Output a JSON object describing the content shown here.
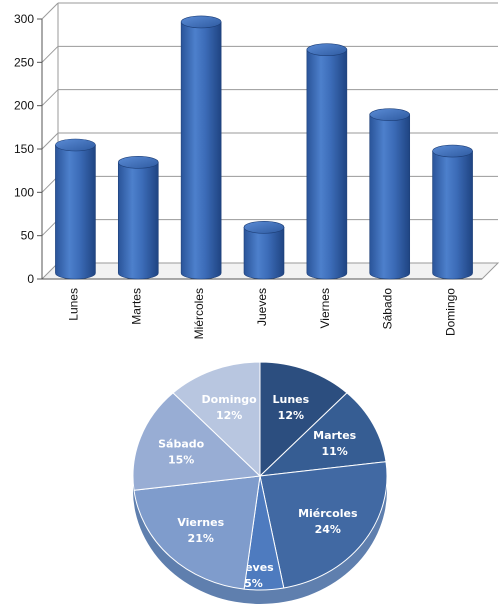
{
  "chart_data": [
    {
      "type": "bar",
      "style": "3d-cylinder",
      "categories": [
        "Lunes",
        "Martes",
        "Miércoles",
        "Jueves",
        "Viernes",
        "Sábado",
        "Domingo"
      ],
      "values": [
        150,
        130,
        292,
        55,
        260,
        185,
        143
      ],
      "ylim": [
        0,
        300
      ],
      "yticks": [
        "0",
        "50",
        "100",
        "150",
        "200",
        "250",
        "300"
      ],
      "grid": true,
      "color": "#3f6fba"
    },
    {
      "type": "pie",
      "style": "3d",
      "slices": [
        {
          "label": "Lunes",
          "percent": "12%",
          "value": 12,
          "color": "#2c4e7f"
        },
        {
          "label": "Martes",
          "percent": "11%",
          "value": 11,
          "color": "#365d93"
        },
        {
          "label": "Miércoles",
          "percent": "24%",
          "value": 24,
          "color": "#4169a3"
        },
        {
          "label": "Jueves",
          "percent": "5%",
          "value": 5,
          "color": "#4e7bbf"
        },
        {
          "label": "Viernes",
          "percent": "21%",
          "value": 21,
          "color": "#7f9ccc"
        },
        {
          "label": "Sábado",
          "percent": "15%",
          "value": 15,
          "color": "#98add4"
        },
        {
          "label": "Domingo",
          "percent": "12%",
          "value": 12,
          "color": "#b8c6e0"
        }
      ]
    }
  ]
}
